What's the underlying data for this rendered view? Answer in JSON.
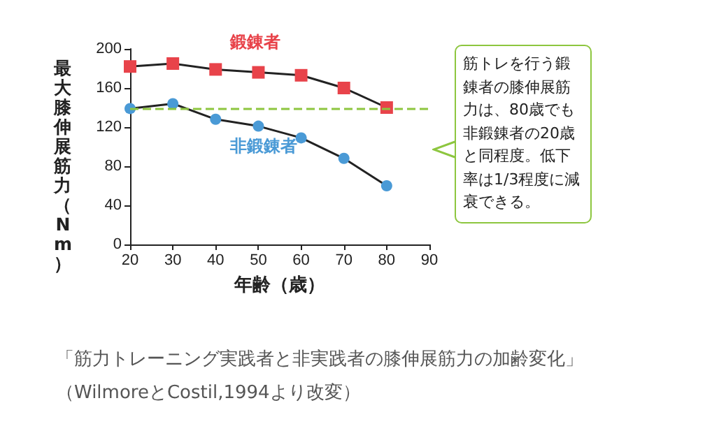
{
  "chart_data": {
    "type": "line",
    "xlabel": "年齢（歳）",
    "ylabel": "最大膝伸展筋力（Nm）",
    "x": [
      20,
      30,
      40,
      50,
      60,
      70,
      80
    ],
    "series": [
      {
        "name": "鍛錬者",
        "color": "#e8434a",
        "marker": "square",
        "values": [
          182,
          185,
          179,
          176,
          173,
          160,
          140
        ]
      },
      {
        "name": "非鍛錬者",
        "color": "#4a9ad6",
        "marker": "circle",
        "values": [
          139,
          144,
          128,
          121,
          109,
          88,
          60
        ]
      }
    ],
    "xlim": [
      20,
      90
    ],
    "xticks": [
      20,
      30,
      40,
      50,
      60,
      70,
      80,
      90
    ],
    "ylim": [
      0,
      200
    ],
    "yticks": [
      0,
      40,
      80,
      120,
      160,
      200
    ],
    "grid": false,
    "legend": false,
    "ref_lines": [
      {
        "axis": "y",
        "value": 139,
        "color": "#8dc63f",
        "line_style": "dashed"
      }
    ],
    "annotations": [
      "筋トレを行う鍛錬者の膝伸展筋力は、80歳でも非鍛錬者の20歳と同程度。低下率は1/3程度に減衰できる。",
      "「筋力トレーニング実践者と非実践者の膝伸展筋力の加齢変化」",
      "（WilmoreとCostil,1994より改変）"
    ]
  }
}
